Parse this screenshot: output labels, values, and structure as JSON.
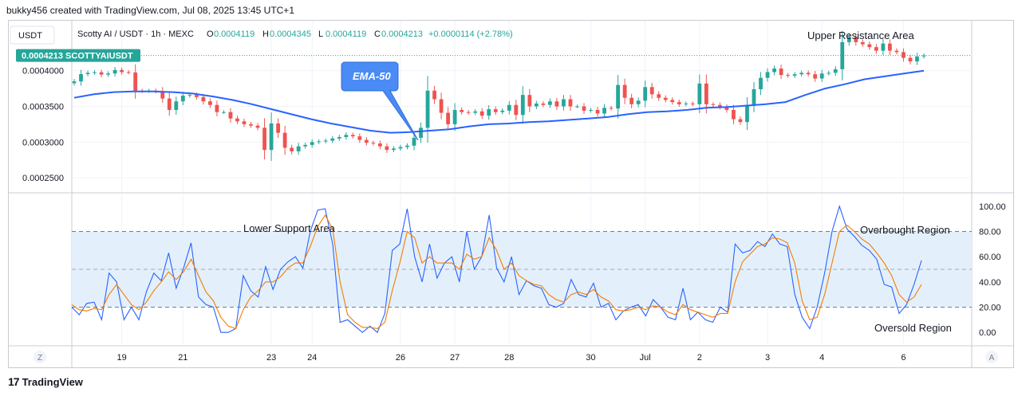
{
  "header": {
    "credit": "bukky456 created with TradingView.com, Jul 08, 2025 13:45 UTC+1"
  },
  "legend": {
    "currency": "USDT",
    "symbol_line": "Scotty AI / USDT · 1h · MEXC",
    "ohlc": [
      {
        "label": "O",
        "value": "0.0004119"
      },
      {
        "label": "H",
        "value": "0.0004345"
      },
      {
        "label": "L",
        "value": "0.0004119"
      },
      {
        "label": "C",
        "value": "0.0004213"
      }
    ],
    "change": "+0.0000114 (+2.78%)"
  },
  "price_tag": {
    "price": "0.0004213",
    "ticker": "SCOTTYAIUSDT"
  },
  "annotations": {
    "ema_callout": "EMA-50",
    "upper_resistance": "Upper Resistance Area",
    "lower_support": "Lower Support Area",
    "overbought": "Overbought Region",
    "oversold": "Oversold Region"
  },
  "buttons": {
    "left_scale": "Z",
    "auto_scale": "A"
  },
  "branding": {
    "logo": "17",
    "name": "TradingView"
  },
  "colors": {
    "up": "#26a69a",
    "down": "#ef5350",
    "ema": "#2962ff",
    "stoch_k": "#2962ff",
    "stoch_d": "#f57c00",
    "band": "#e3f0fb",
    "callout": "#4a8bf5"
  },
  "chart_data": [
    {
      "type": "candlestick",
      "title": "Scotty AI / USDT · 1h · MEXC",
      "ylim": [
        0.00023,
        0.00047
      ],
      "y_ticks": [
        "0.0002500",
        "0.0003000",
        "0.0003500",
        "0.0004000"
      ],
      "y_tick_values": [
        0.00025,
        0.0003,
        0.00035,
        0.0004
      ],
      "x_ticks": [
        "19",
        "21",
        "23",
        "24",
        "26",
        "27",
        "28",
        "30",
        "Jul",
        "2",
        "3",
        "4",
        "6"
      ],
      "x_tick_index": [
        7,
        16,
        29,
        35,
        48,
        56,
        64,
        76,
        84,
        92,
        102,
        110,
        122
      ],
      "last_price": 0.0004213,
      "candles_close": [
        0.000385,
        0.0003952,
        0.000397,
        0.0003978,
        0.0003945,
        0.0003961,
        0.000401,
        0.000398,
        0.0003975,
        0.000372,
        0.0003715,
        0.000372,
        0.000371,
        0.000361,
        0.000345,
        0.000357,
        0.000365,
        0.000366,
        0.000363,
        0.000357,
        0.000352,
        0.000342,
        0.000342,
        0.000333,
        0.000329,
        0.000325,
        0.000323,
        0.00032,
        0.000289,
        0.000326,
        0.000313,
        0.000292,
        0.000287,
        0.000294,
        0.000296,
        0.0003,
        0.000301,
        0.000302,
        0.000305,
        0.000307,
        0.00031,
        0.000308,
        0.000303,
        0.000299,
        0.000298,
        0.000294,
        0.000289,
        0.000291,
        0.000293,
        0.000295,
        0.000306,
        0.00032,
        0.000372,
        0.00036,
        0.000341,
        0.000325,
        0.000345,
        0.000342,
        0.000341,
        0.000343,
        0.000337,
        0.000346,
        0.000342,
        0.000344,
        0.000352,
        0.000338,
        0.000366,
        0.00035,
        0.000354,
        0.000352,
        0.000357,
        0.00035,
        0.00036,
        0.00035,
        0.00035,
        0.000344,
        0.000345,
        0.00034,
        0.000348,
        0.000347,
        0.00038,
        0.000362,
        0.000353,
        0.000358,
        0.000377,
        0.000367,
        0.000362,
        0.000359,
        0.000356,
        0.000353,
        0.000354,
        0.000353,
        0.000382,
        0.000353,
        0.000352,
        0.000349,
        0.000345,
        0.000332,
        0.000328,
        0.000352,
        0.000374,
        0.00039,
        0.000398,
        0.000403,
        0.000394,
        0.000393,
        0.000395,
        0.000397,
        0.000395,
        0.000389,
        0.000396,
        0.000397,
        0.000402,
        0.00044,
        0.000447,
        0.00044,
        0.000437,
        0.000433,
        0.000428,
        0.000438,
        0.000428,
        0.000426,
        0.000418,
        0.000413,
        0.00042,
        0.0004213
      ],
      "ema50": [
        0.000362,
        0.000367,
        0.00037,
        0.000371,
        0.000371,
        0.00037,
        0.000368,
        0.000364,
        0.000359,
        0.000353,
        0.000346,
        0.000339,
        0.000332,
        0.000326,
        0.000321,
        0.000316,
        0.000313,
        0.000314,
        0.000316,
        0.000318,
        0.000322,
        0.000325,
        0.000326,
        0.000328,
        0.000329,
        0.000331,
        0.000333,
        0.000335,
        0.000339,
        0.000342,
        0.000343,
        0.000345,
        0.000348,
        0.000349,
        0.000351,
        0.000353,
        0.000356,
        0.000366,
        0.000375,
        0.000381,
        0.000388,
        0.000392,
        0.000396,
        0.0004
      ],
      "ema50_index": [
        0,
        6,
        12,
        18,
        24,
        30,
        36,
        42,
        48,
        54,
        60,
        66,
        72,
        78,
        84,
        90,
        96,
        102,
        108,
        114,
        120,
        126,
        132,
        138,
        144,
        150,
        156,
        162,
        168,
        174,
        180,
        186,
        192,
        198,
        204,
        210,
        216,
        222,
        228,
        234,
        240,
        246,
        252,
        258
      ],
      "series": [
        {
          "name": "EMA-50"
        }
      ]
    },
    {
      "type": "line",
      "ylim": [
        -10,
        110
      ],
      "y_ticks": [
        "0.00",
        "20.00",
        "40.00",
        "60.00",
        "80.00",
        "100.00"
      ],
      "y_tick_values": [
        0,
        20,
        40,
        60,
        80,
        100
      ],
      "band": [
        20,
        80
      ],
      "midline": 50,
      "series": [
        {
          "values": [
            20,
            14,
            23,
            24,
            10,
            47,
            40,
            10,
            20,
            10,
            32,
            47,
            41,
            63,
            35,
            51,
            71,
            28,
            22,
            20,
            0,
            0,
            3,
            45,
            33,
            28,
            52,
            34,
            50,
            56,
            60,
            51,
            80,
            97,
            98,
            70,
            8,
            10,
            5,
            0,
            5,
            0,
            15,
            65,
            70,
            98,
            60,
            40,
            70,
            43,
            55,
            60,
            40,
            80,
            50,
            60,
            93,
            51,
            40,
            60,
            30,
            41,
            37,
            35,
            22,
            20,
            23,
            42,
            30,
            28,
            39,
            20,
            23,
            10,
            17,
            20,
            22,
            13,
            26,
            20,
            12,
            10,
            35,
            10,
            16,
            10,
            8,
            20,
            16,
            70,
            63,
            65,
            72,
            68,
            78,
            70,
            68,
            30,
            12,
            3,
            20,
            47,
            80,
            100,
            82,
            76,
            69,
            65,
            58,
            38,
            36,
            15,
            22,
            38,
            57
          ]
        },
        {
          "values": [
            22,
            18,
            17,
            19,
            18,
            30,
            38,
            30,
            22,
            18,
            24,
            33,
            40,
            48,
            42,
            48,
            58,
            45,
            32,
            25,
            12,
            5,
            3,
            18,
            28,
            33,
            40,
            40,
            44,
            51,
            55,
            55,
            68,
            84,
            93,
            82,
            40,
            14,
            8,
            4,
            4,
            3,
            8,
            33,
            55,
            80,
            75,
            55,
            60,
            55,
            55,
            55,
            50,
            62,
            58,
            60,
            75,
            65,
            50,
            55,
            45,
            41,
            38,
            37,
            30,
            26,
            24,
            30,
            32,
            30,
            34,
            28,
            25,
            18,
            17,
            18,
            20,
            18,
            21,
            20,
            16,
            14,
            22,
            18,
            16,
            14,
            12,
            15,
            15,
            40,
            56,
            62,
            68,
            70,
            75,
            74,
            71,
            55,
            25,
            10,
            12,
            30,
            55,
            80,
            85,
            80,
            74,
            70,
            63,
            55,
            45,
            30,
            24,
            28,
            38
          ]
        }
      ]
    }
  ]
}
